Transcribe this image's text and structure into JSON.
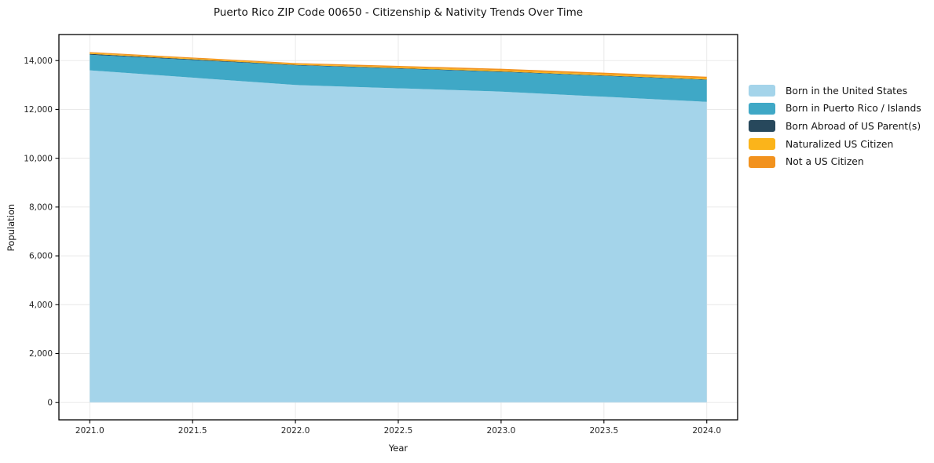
{
  "chart_data": {
    "type": "area",
    "stacked": true,
    "title": "Puerto Rico ZIP Code 00650 - Citizenship & Nativity Trends Over Time",
    "xlabel": "Year",
    "ylabel": "Population",
    "x": [
      2021,
      2022,
      2023,
      2024
    ],
    "series": [
      {
        "name": "Born in the United States",
        "color": "#A4D4EA",
        "values": [
          13600,
          13000,
          12730,
          12310
        ]
      },
      {
        "name": "Born in Puerto Rico / Islands",
        "color": "#3FA8C6",
        "values": [
          640,
          805,
          805,
          900
        ]
      },
      {
        "name": "Born Abroad of US Parent(s)",
        "color": "#27485C",
        "values": [
          35,
          20,
          20,
          15
        ]
      },
      {
        "name": "Naturalized US Citizen",
        "color": "#FBB41A",
        "values": [
          35,
          35,
          50,
          55
        ]
      },
      {
        "name": "Not a US Citizen",
        "color": "#F2921E",
        "values": [
          40,
          40,
          60,
          60
        ]
      }
    ],
    "totals": [
      14350,
      13900,
      13665,
      13340
    ],
    "xlim": [
      2020.85,
      2024.15
    ],
    "ylim": [
      -717.5,
      15067.5
    ],
    "x_ticks": {
      "values": [
        2021.0,
        2021.5,
        2022.0,
        2022.5,
        2023.0,
        2023.5,
        2024.0
      ],
      "labels": [
        "2021.0",
        "2021.5",
        "2022.0",
        "2022.5",
        "2023.0",
        "2023.5",
        "2024.0"
      ]
    },
    "y_ticks": {
      "values": [
        0,
        2000,
        4000,
        6000,
        8000,
        10000,
        12000,
        14000
      ],
      "labels": [
        "0",
        "2,000",
        "4,000",
        "6,000",
        "8,000",
        "10,000",
        "12,000",
        "14,000"
      ]
    },
    "grid": true,
    "grid_color": "#e7e7e7",
    "spine_color": "#000000",
    "tick_text_color": "#262626",
    "legend_position": "right-outside"
  }
}
